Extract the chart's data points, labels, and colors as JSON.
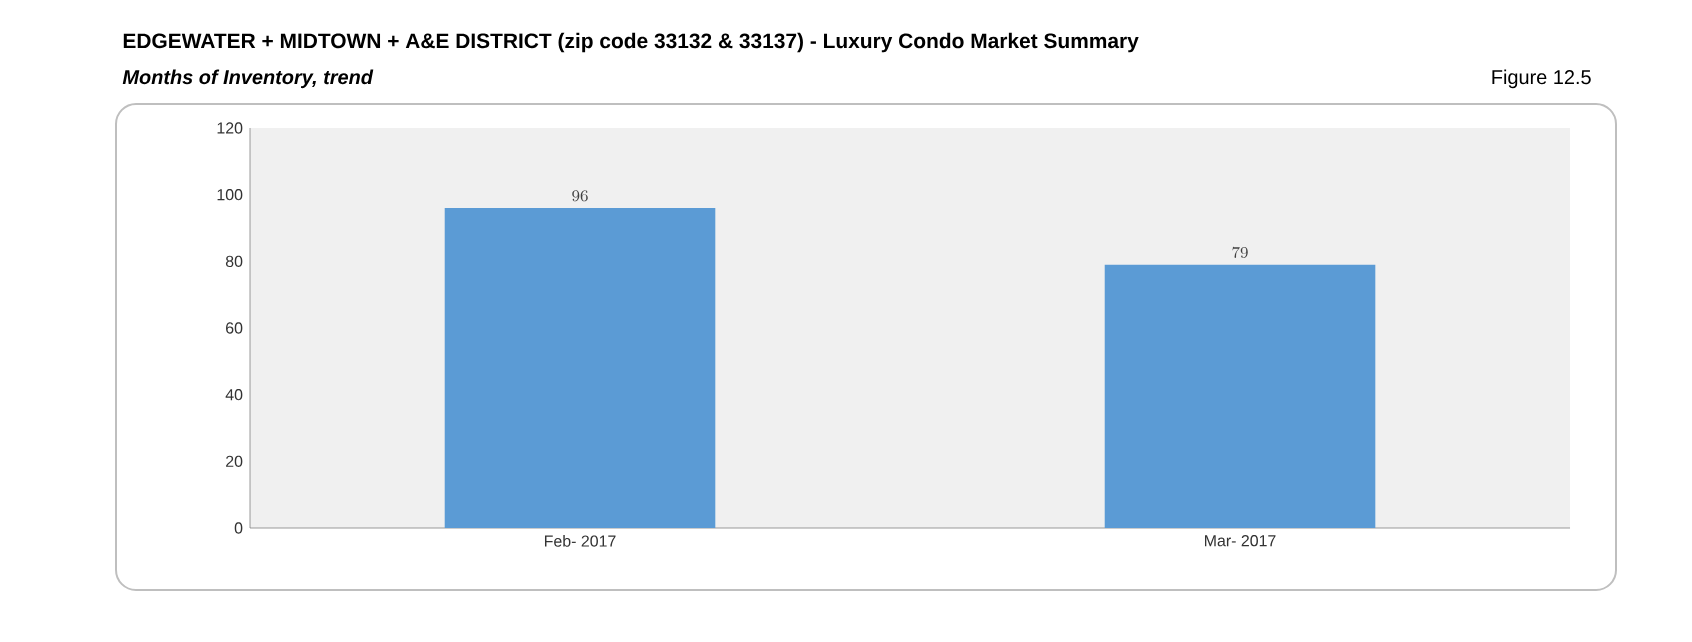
{
  "chart_data": {
    "type": "bar",
    "title": "EDGEWATER + MIDTOWN + A&E DISTRICT (zip code 33132 & 33137) - Luxury Condo Market Summary",
    "subtitle": "Months of Inventory, trend",
    "annotations": [
      "Figure 12.5"
    ],
    "categories": [
      "Feb- 2017",
      "Mar- 2017"
    ],
    "values": [
      96,
      79
    ],
    "color": "#5b9bd5",
    "ylim": [
      0,
      120
    ],
    "yticks": [
      0,
      20,
      40,
      60,
      80,
      100,
      120
    ],
    "data_labels": true,
    "grid": false
  }
}
